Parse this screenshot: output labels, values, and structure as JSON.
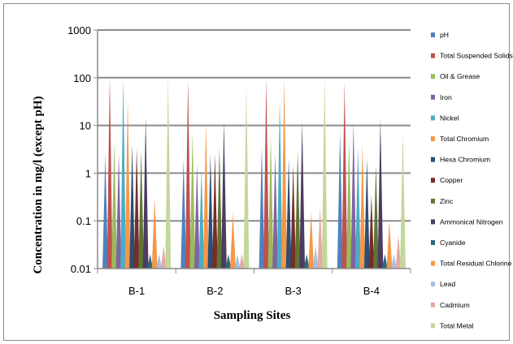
{
  "chart_data": {
    "type": "bar",
    "xlabel": "Sampling Sites",
    "ylabel": "Concentration in mg/l (except pH)",
    "y_scale": "log",
    "ylim": [
      0.01,
      1000
    ],
    "y_ticks": [
      "0.01",
      "0.1",
      "1",
      "10",
      "100",
      "1000"
    ],
    "grid": "horizontal",
    "legend_position": "right",
    "categories": [
      "B-1",
      "B-2",
      "B-3",
      "B-4"
    ],
    "series": [
      {
        "name": "pH",
        "color": "#4f81bd",
        "values": [
          2.5,
          2.0,
          3.5,
          7.5
        ]
      },
      {
        "name": "Total Suspended Solids",
        "color": "#c0504d",
        "values": [
          105,
          90,
          95,
          85
        ]
      },
      {
        "name": "Oil & Grease",
        "color": "#9bbb59",
        "values": [
          4.5,
          7.0,
          6.0,
          5.0
        ]
      },
      {
        "name": "Iron",
        "color": "#8064a2",
        "values": [
          2.5,
          1.5,
          2.5,
          12.0
        ]
      },
      {
        "name": "Nickel",
        "color": "#4bacc6",
        "values": [
          95,
          1.2,
          35,
          3.5
        ]
      },
      {
        "name": "Total Chromium",
        "color": "#f79646",
        "values": [
          35,
          12,
          100,
          4.0
        ]
      },
      {
        "name": "Hexa Chromium",
        "color": "#2c4d75",
        "values": [
          4.0,
          2.5,
          2.0,
          2.0
        ]
      },
      {
        "name": "Copper",
        "color": "#772c2a",
        "values": [
          3.5,
          2.5,
          1.5,
          0.35
        ]
      },
      {
        "name": "Zinc",
        "color": "#5f7530",
        "values": [
          3.0,
          3.5,
          3.0,
          1.5
        ]
      },
      {
        "name": "Ammonical Nitrogen",
        "color": "#4d3b62",
        "values": [
          15,
          12,
          12,
          14
        ]
      },
      {
        "name": "Cyanide",
        "color": "#276a7c",
        "values": [
          0.02,
          0.02,
          0.02,
          0.02
        ]
      },
      {
        "name": "Total Residual Chlorine",
        "color": "#f79646",
        "values": [
          0.3,
          0.15,
          0.15,
          0.1
        ]
      },
      {
        "name": "Lead",
        "color": "#a7c0de",
        "values": [
          0.02,
          0.02,
          0.03,
          0.02
        ]
      },
      {
        "name": "Cadmium",
        "color": "#e6a9a7",
        "values": [
          0.03,
          0.02,
          0.2,
          0.05
        ]
      },
      {
        "name": "Total Metal",
        "color": "#c4d79b",
        "values": [
          120,
          65,
          110,
          7.5
        ]
      }
    ]
  }
}
